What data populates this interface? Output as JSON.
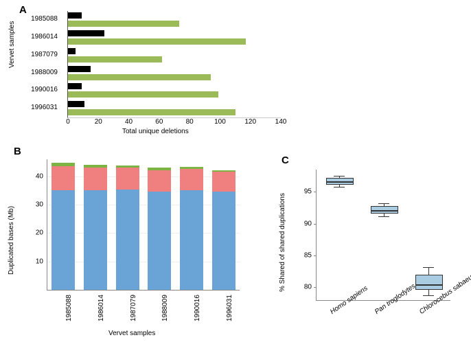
{
  "panelA": {
    "label": "A",
    "ylabel": "Vervet samples",
    "xlabel": "Total unique deletions",
    "xlim": [
      0,
      140
    ],
    "xtick_step": 20,
    "categories": [
      "1985088",
      "1986014",
      "1987079",
      "1988009",
      "1990016",
      "1996031"
    ],
    "black_values": [
      9,
      24,
      5,
      15,
      9,
      11
    ],
    "green_values": [
      73,
      117,
      62,
      94,
      99,
      110
    ],
    "colors": {
      "black": "#000000",
      "green": "#9bbb59",
      "axis": "#555555"
    },
    "bar_gap": 3,
    "label_fontsize": 10
  },
  "panelB": {
    "label": "B",
    "ylabel": "Duplicated bases (Mb)",
    "xlabel": "Vervet samples",
    "ylim": [
      0,
      46
    ],
    "yticks": [
      10,
      20,
      30,
      40
    ],
    "categories": [
      "1985088",
      "1986014",
      "1987079",
      "1988009",
      "1990016",
      "1996031"
    ],
    "blue": [
      35,
      35,
      35.3,
      34.7,
      35,
      34.7
    ],
    "red": [
      8.5,
      8,
      7.7,
      7.5,
      7.5,
      7
    ],
    "green": [
      1.2,
      1.0,
      0.8,
      0.8,
      0.8,
      0.5
    ],
    "colors": {
      "blue": "#6aa3d5",
      "red": "#f08080",
      "green": "#7cb342",
      "grid": "#eeeeee",
      "axis": "#888888"
    },
    "label_fontsize": 10
  },
  "panelC": {
    "label": "C",
    "ylabel": "% Shared of shared duplications",
    "ylim": [
      78,
      98.5
    ],
    "yticks": [
      80,
      85,
      90,
      95
    ],
    "categories": [
      "Homo sapiens",
      "Pan troglodytes",
      "Chlorocebus sabaeus"
    ],
    "boxes": [
      {
        "low": 95.8,
        "q1": 96.3,
        "median": 96.8,
        "q3": 97.2,
        "high": 97.5
      },
      {
        "low": 91.2,
        "q1": 91.8,
        "median": 92.2,
        "q3": 92.8,
        "high": 93.2
      },
      {
        "low": 78.8,
        "q1": 79.8,
        "median": 80.6,
        "q3": 82.0,
        "high": 83.2
      }
    ],
    "colors": {
      "fill": "#a9cce3",
      "line": "#333333",
      "axis": "#888888"
    },
    "label_fontsize": 10
  }
}
